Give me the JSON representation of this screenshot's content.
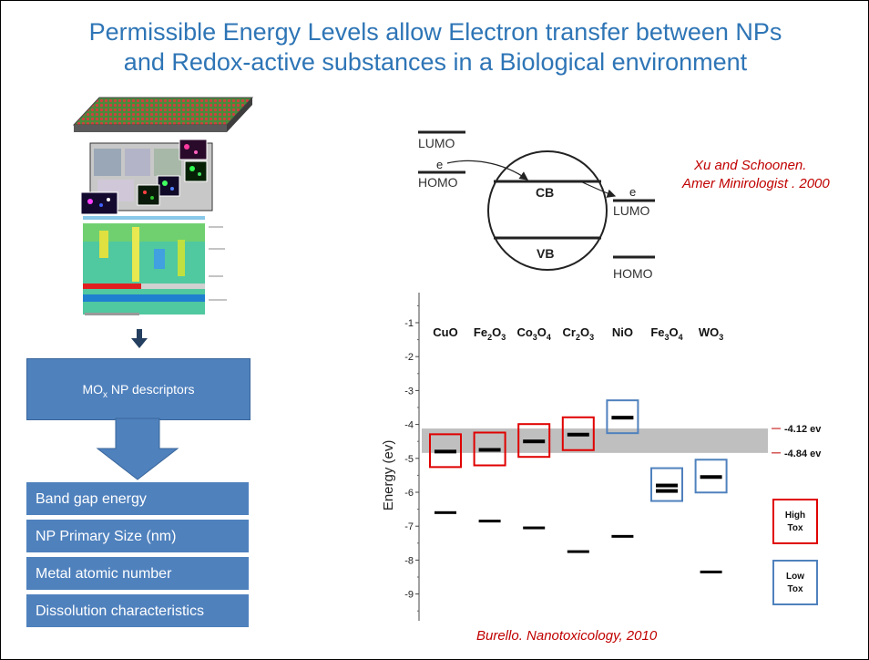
{
  "title": {
    "line1": "Permissible Energy Levels allow Electron transfer between NPs",
    "line2": "and Redox-active substances in a Biological environment"
  },
  "citations": {
    "xu_line1": "Xu and Schoonen.",
    "xu_line2": "Amer Minirologist . 2000",
    "burello": "Burello. Nanotoxicology, 2010"
  },
  "flow": {
    "descriptor_box": {
      "base": "MO",
      "sub": "x",
      "rest": " NP descriptors"
    },
    "descriptors": [
      "Band gap energy",
      "NP Primary Size (nm)",
      "Metal atomic number",
      "Dissolution characteristics"
    ]
  },
  "band_diagram": {
    "lumo_left": "LUMO",
    "homo_left": "HOMO",
    "electron_left": "e",
    "cb": "CB",
    "vb": "VB",
    "electron_right": "e",
    "lumo_right": "LUMO",
    "homo_right": "HOMO"
  },
  "colors": {
    "title": "#2E75B6",
    "citation": "#C00000",
    "box": "#4F81BD",
    "high_tox": "#E00000",
    "low_tox": "#4F81BD",
    "band": "#BFBFBF"
  },
  "chart_data": {
    "type": "range",
    "ylabel": "Energy (ev)",
    "ylim": [
      -10,
      -0.5
    ],
    "yticks": [
      -1,
      -2,
      -3,
      -4,
      -5,
      -6,
      -7,
      -8,
      -9,
      -10
    ],
    "categories": [
      {
        "base": "CuO",
        "parts": []
      },
      {
        "base": "Fe",
        "parts": [
          [
            "2",
            "O"
          ],
          [
            "3",
            ""
          ]
        ]
      },
      {
        "base": "Co",
        "parts": [
          [
            "3",
            "O"
          ],
          [
            "4",
            ""
          ]
        ]
      },
      {
        "base": "Cr",
        "parts": [
          [
            "2",
            "O"
          ],
          [
            "3",
            ""
          ]
        ]
      },
      {
        "base": "NiO",
        "parts": []
      },
      {
        "base": "Fe",
        "parts": [
          [
            "3",
            "O"
          ],
          [
            "4",
            ""
          ]
        ]
      },
      {
        "base": "WO",
        "parts": [
          [
            "3",
            ""
          ]
        ]
      }
    ],
    "conduction_band": [
      -4.8,
      -4.75,
      -4.5,
      -4.3,
      -3.8,
      -5.8,
      -5.55
    ],
    "valence_band": [
      -6.6,
      -6.85,
      -7.05,
      -7.75,
      -7.3,
      null,
      -8.35
    ],
    "toxicity": [
      "high",
      "high",
      "high",
      "high",
      "low",
      "low",
      "low"
    ],
    "band_range": [
      -4.84,
      -4.12
    ],
    "band_labels": [
      "-4.12 ev",
      "-4.84 ev"
    ],
    "legend": [
      {
        "key": "high",
        "line1": "High",
        "line2": "Tox"
      },
      {
        "key": "low",
        "line1": "Low",
        "line2": "Tox"
      }
    ]
  }
}
